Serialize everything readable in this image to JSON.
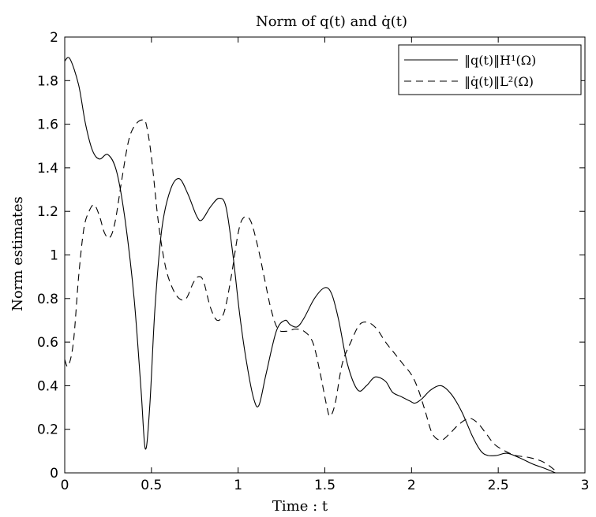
{
  "chart_data": {
    "type": "line",
    "title": "Norm of q(t) and q̇(t)",
    "xlabel": "Time : t",
    "ylabel": "Norm estimates",
    "xlim": [
      0,
      3
    ],
    "ylim": [
      0,
      2
    ],
    "xticks": [
      "0",
      "0.5",
      "1",
      "1.5",
      "2",
      "2.5",
      "3"
    ],
    "yticks": [
      "0",
      "0.2",
      "0.4",
      "0.6",
      "0.8",
      "1",
      "1.2",
      "1.4",
      "1.6",
      "1.8",
      "2"
    ],
    "grid": false,
    "legend_position": "top-right",
    "series": [
      {
        "name": "‖q(t)‖H¹(Ω)",
        "style": "solid",
        "color": "#000000",
        "x": [
          0,
          0.03,
          0.08,
          0.12,
          0.16,
          0.2,
          0.25,
          0.3,
          0.35,
          0.4,
          0.44,
          0.465,
          0.49,
          0.52,
          0.56,
          0.61,
          0.66,
          0.71,
          0.76,
          0.79,
          0.84,
          0.89,
          0.93,
          0.97,
          1.01,
          1.05,
          1.09,
          1.12,
          1.16,
          1.22,
          1.27,
          1.3,
          1.34,
          1.38,
          1.44,
          1.5,
          1.54,
          1.58,
          1.63,
          1.69,
          1.74,
          1.79,
          1.85,
          1.89,
          1.94,
          1.99,
          2.02,
          2.06,
          2.11,
          2.17,
          2.23,
          2.29,
          2.35,
          2.4,
          2.44,
          2.49,
          2.55,
          2.62,
          2.7,
          2.77,
          2.83
        ],
        "y": [
          1.89,
          1.9,
          1.78,
          1.6,
          1.48,
          1.44,
          1.46,
          1.38,
          1.15,
          0.8,
          0.38,
          0.11,
          0.3,
          0.75,
          1.12,
          1.3,
          1.35,
          1.28,
          1.18,
          1.16,
          1.22,
          1.26,
          1.22,
          1.0,
          0.72,
          0.5,
          0.34,
          0.31,
          0.45,
          0.65,
          0.7,
          0.68,
          0.67,
          0.71,
          0.8,
          0.85,
          0.82,
          0.7,
          0.5,
          0.38,
          0.4,
          0.44,
          0.42,
          0.37,
          0.35,
          0.33,
          0.32,
          0.34,
          0.38,
          0.4,
          0.36,
          0.28,
          0.17,
          0.1,
          0.08,
          0.08,
          0.09,
          0.07,
          0.04,
          0.02,
          0.0
        ]
      },
      {
        "name": "‖q̇(t)‖L²(Ω)",
        "style": "dashed",
        "color": "#000000",
        "x": [
          0,
          0.02,
          0.05,
          0.08,
          0.11,
          0.14,
          0.17,
          0.2,
          0.23,
          0.26,
          0.29,
          0.33,
          0.37,
          0.41,
          0.45,
          0.47,
          0.5,
          0.54,
          0.58,
          0.62,
          0.66,
          0.7,
          0.74,
          0.77,
          0.8,
          0.84,
          0.88,
          0.92,
          0.96,
          1.0,
          1.03,
          1.07,
          1.11,
          1.15,
          1.19,
          1.23,
          1.28,
          1.33,
          1.38,
          1.43,
          1.47,
          1.51,
          1.53,
          1.56,
          1.6,
          1.65,
          1.7,
          1.75,
          1.8,
          1.85,
          1.9,
          1.95,
          2.0,
          2.04,
          2.08,
          2.12,
          2.17,
          2.22,
          2.27,
          2.33,
          2.38,
          2.43,
          2.48,
          2.54,
          2.6,
          2.68,
          2.76,
          2.83
        ],
        "y": [
          0.52,
          0.49,
          0.6,
          0.9,
          1.12,
          1.2,
          1.23,
          1.18,
          1.1,
          1.08,
          1.15,
          1.35,
          1.53,
          1.6,
          1.62,
          1.6,
          1.45,
          1.15,
          0.95,
          0.85,
          0.8,
          0.8,
          0.87,
          0.9,
          0.88,
          0.76,
          0.7,
          0.74,
          0.9,
          1.1,
          1.17,
          1.16,
          1.05,
          0.9,
          0.75,
          0.66,
          0.65,
          0.66,
          0.65,
          0.6,
          0.47,
          0.31,
          0.26,
          0.32,
          0.5,
          0.6,
          0.68,
          0.69,
          0.66,
          0.6,
          0.55,
          0.5,
          0.45,
          0.38,
          0.28,
          0.18,
          0.15,
          0.18,
          0.22,
          0.25,
          0.23,
          0.18,
          0.13,
          0.1,
          0.08,
          0.07,
          0.05,
          0.01
        ]
      }
    ]
  }
}
